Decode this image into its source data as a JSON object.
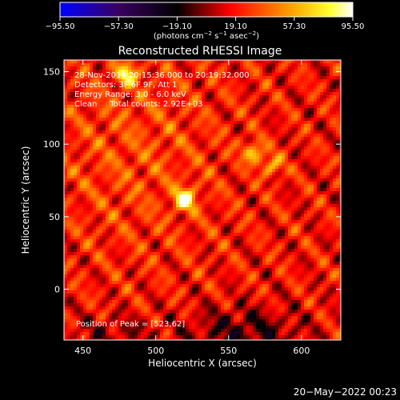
{
  "chart_data": {
    "type": "heatmap",
    "title": "Reconstructed RHESSI Image",
    "xlabel": "Heliocentric X (arcsec)",
    "ylabel": "Heliocentric Y (arcsec)",
    "xlim": [
      437,
      627
    ],
    "ylim": [
      -35,
      158
    ],
    "xticks": [
      "450",
      "500",
      "550",
      "600"
    ],
    "xtick_values": [
      450,
      500,
      550,
      600
    ],
    "yticks": [
      "0",
      "50",
      "100",
      "150"
    ],
    "ytick_values": [
      0,
      50,
      100,
      150
    ],
    "colorbar": {
      "min": -95.5,
      "max": 95.5,
      "ticks": [
        "−95.50",
        "−57.30",
        "−19.10",
        "19.10",
        "57.30",
        "95.50"
      ],
      "tick_values": [
        -95.5,
        -57.3,
        -19.1,
        19.1,
        57.3,
        95.5
      ],
      "unit_main": "(photons cm",
      "unit_exp1": "−2",
      "unit_mid": " s",
      "unit_exp2": "−1",
      "unit_tail": " asec",
      "unit_exp3": "−2",
      "unit_close": ")",
      "colormap": [
        "#0000ff",
        "#000000",
        "#ff0000",
        "#ffff00",
        "#ffffff"
      ]
    },
    "annotations": [
      "28-Nov-2014 20:15:36.000 to 20:19:32.000",
      "Detectors: 3F 6F 9F, Att 1",
      "Energy Range: 3.0 - 6.0 keV",
      "Clean     Total counts: 2.92E+03"
    ],
    "peak_label": "Position of Peak = [523,62]",
    "peak": [
      523,
      62
    ],
    "sources": [
      {
        "x": 520,
        "y": 62,
        "value": 95.5
      },
      {
        "x": 567,
        "y": 94,
        "value": 70
      },
      {
        "x": 580,
        "y": 85,
        "value": 60
      },
      {
        "x": 480,
        "y": 148,
        "value": 75
      }
    ],
    "grid": false
  },
  "timestamp": "20−May−2022 00:23"
}
